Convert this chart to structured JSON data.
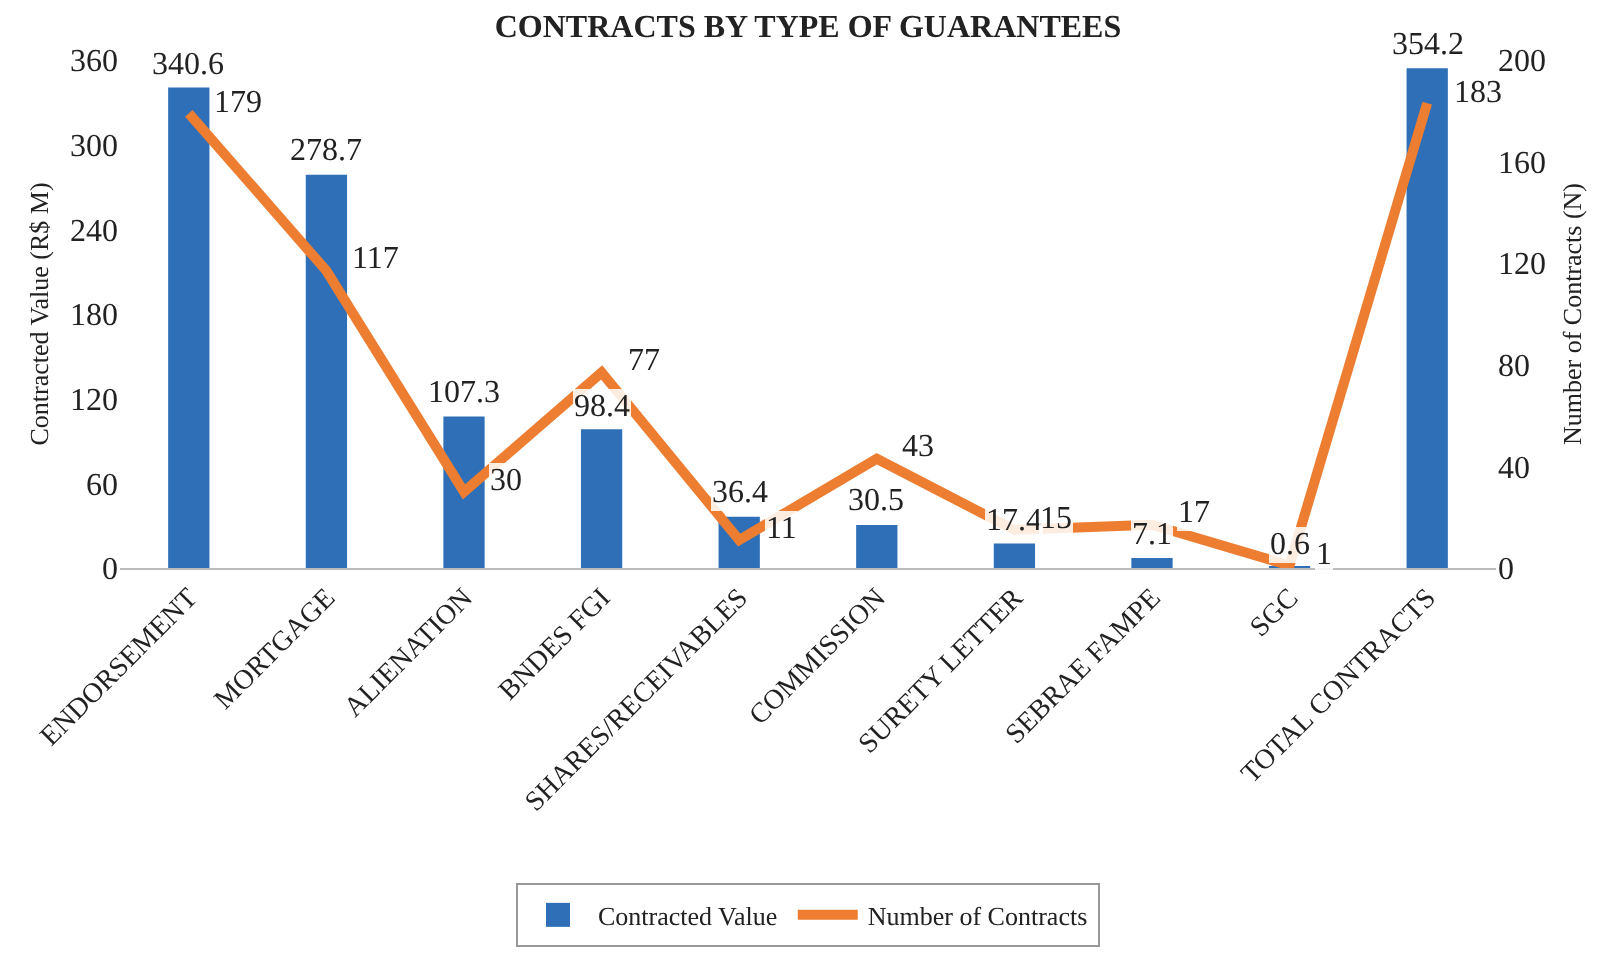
{
  "chart_data": {
    "type": "bar",
    "title": "CONTRACTS BY TYPE OF GUARANTEES",
    "categories": [
      "ENDORSEMENT",
      "MORTGAGE",
      "ALIENATION",
      "BNDES FGI",
      "SHARES/RECEIVABLES",
      "COMMISSION",
      "SURETY LETTER",
      "SEBRAE FAMPE",
      "SGC",
      "TOTAL CONTRACTS"
    ],
    "series": [
      {
        "name": "Contracted Value",
        "color": "#2e6fb7",
        "values": [
          340.6,
          278.7,
          107.3,
          98.4,
          36.4,
          30.5,
          17.4,
          7.1,
          0.6,
          354.2
        ]
      },
      {
        "name": "Number of Contracts",
        "type": "line",
        "axis": "y2",
        "color": "#ed7d31",
        "values": [
          179,
          117,
          30,
          77,
          11,
          43,
          15,
          17,
          1,
          183
        ]
      }
    ],
    "ylabel": "Contracted Value (R$ M)",
    "y2label": "Number of Contracts (N)",
    "ylim": [
      0,
      360
    ],
    "yticks": [
      0,
      60,
      120,
      180,
      240,
      300,
      360
    ],
    "y2lim": [
      0,
      200
    ],
    "y2ticks": [
      0,
      40,
      80,
      120,
      160,
      200
    ],
    "data_labels": true,
    "legend": "bottom",
    "marker": "none",
    "line_style": "solid"
  }
}
